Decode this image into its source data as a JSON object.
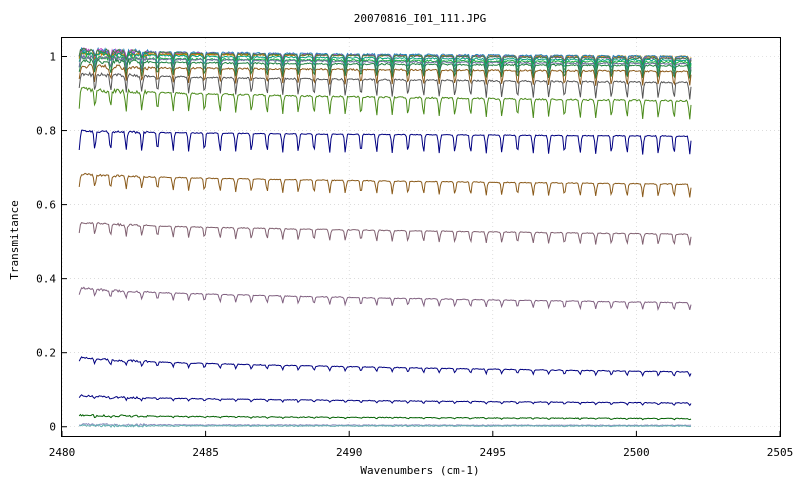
{
  "chart_data": {
    "type": "line",
    "title": "20070816_I01_111.JPG",
    "xlabel": "Wavenumbers (cm-1)",
    "ylabel": "Transmitance",
    "xlim": [
      2480,
      2505
    ],
    "ylim": [
      -0.025,
      1.05
    ],
    "x_ticks": [
      2480,
      2485,
      2490,
      2495,
      2500,
      2505
    ],
    "y_ticks": [
      0,
      0.2,
      0.4,
      0.6,
      0.8,
      1
    ],
    "x_tick_labels": [
      "2480",
      "2485",
      "2490",
      "2495",
      "2500",
      "2505"
    ],
    "y_tick_labels": [
      "0",
      "0.2",
      "0.4",
      "0.6",
      "0.8",
      "1"
    ],
    "grid": true,
    "legend": "none",
    "x_range_data": [
      2480.6,
      2501.9
    ],
    "dip_period": 0.545,
    "series": [
      {
        "color": "#7f7f00",
        "start": 1.01,
        "end": 1.0,
        "dip": 0.012
      },
      {
        "color": "#e08000",
        "start": 1.01,
        "end": 1.0,
        "dip": 0.014
      },
      {
        "color": "#2080c0",
        "start": 1.02,
        "end": 1.0,
        "dip": 0.016
      },
      {
        "color": "#c040c0",
        "start": 1.02,
        "end": 0.995,
        "dip": 0.018
      },
      {
        "color": "#408040",
        "start": 1.02,
        "end": 0.995,
        "dip": 0.02
      },
      {
        "color": "#00a080",
        "start": 1.01,
        "end": 0.99,
        "dip": 0.025
      },
      {
        "color": "#20b040",
        "start": 1.0,
        "end": 0.985,
        "dip": 0.03
      },
      {
        "color": "#6a6a9a",
        "start": 1.0,
        "end": 0.98,
        "dip": 0.032
      },
      {
        "color": "#208040",
        "start": 0.99,
        "end": 0.975,
        "dip": 0.035
      },
      {
        "color": "#8a5a1a",
        "start": 0.975,
        "end": 0.96,
        "dip": 0.04
      },
      {
        "color": "#555555",
        "start": 0.955,
        "end": 0.93,
        "dip": 0.045
      },
      {
        "color": "#4a8a1a",
        "start": 0.915,
        "end": 0.88,
        "dip": 0.05
      },
      {
        "color": "#000080",
        "start": 0.8,
        "end": 0.785,
        "dip": 0.05
      },
      {
        "color": "#8a5a1a",
        "start": 0.685,
        "end": 0.655,
        "dip": 0.035
      },
      {
        "color": "#806070",
        "start": 0.555,
        "end": 0.52,
        "dip": 0.03
      },
      {
        "color": "#806080",
        "start": 0.378,
        "end": 0.335,
        "dip": 0.02
      },
      {
        "color": "#000080",
        "start": 0.19,
        "end": 0.148,
        "dip": 0.012
      },
      {
        "color": "#000080",
        "start": 0.085,
        "end": 0.064,
        "dip": 0.006
      },
      {
        "color": "#006000",
        "start": 0.032,
        "end": 0.022,
        "dip": 0.003
      },
      {
        "color": "#9090c0",
        "start": 0.006,
        "end": 0.004,
        "dip": 0.001
      },
      {
        "color": "#60b0b0",
        "start": 0.003,
        "end": 0.002,
        "dip": 0.001
      }
    ]
  }
}
